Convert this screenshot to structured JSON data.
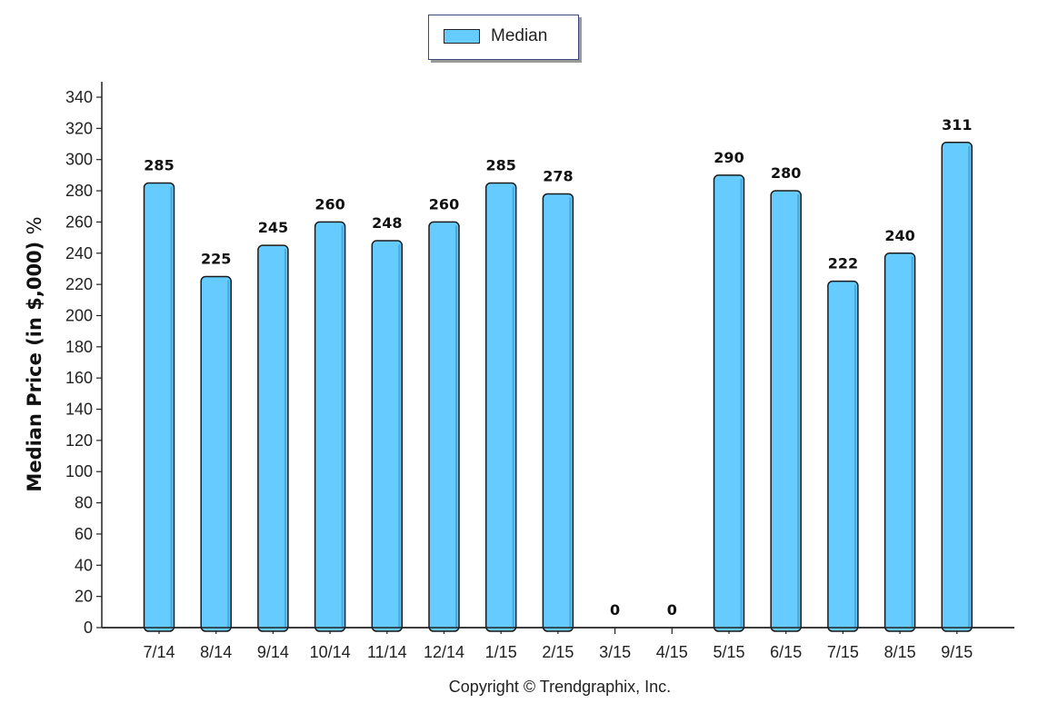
{
  "legend": {
    "label": "Median",
    "color": "#66ccff"
  },
  "footer": {
    "copyright": "Copyright © Trendgraphix, Inc."
  },
  "chart_data": {
    "type": "bar",
    "categories": [
      "7/14",
      "8/14",
      "9/14",
      "10/14",
      "11/14",
      "12/14",
      "1/15",
      "2/15",
      "3/15",
      "4/15",
      "5/15",
      "6/15",
      "7/15",
      "8/15",
      "9/15"
    ],
    "series": [
      {
        "name": "Median",
        "values": [
          285,
          225,
          245,
          260,
          248,
          260,
          285,
          278,
          0,
          0,
          290,
          280,
          222,
          240,
          311
        ]
      }
    ],
    "ylabel": "Median Price (in $,000)",
    "ylabel_unit": "%",
    "ylim": [
      0,
      340
    ],
    "ytick_step": 20,
    "bar_color": "#66ccff",
    "grid": false,
    "legend_position": "top-center"
  }
}
